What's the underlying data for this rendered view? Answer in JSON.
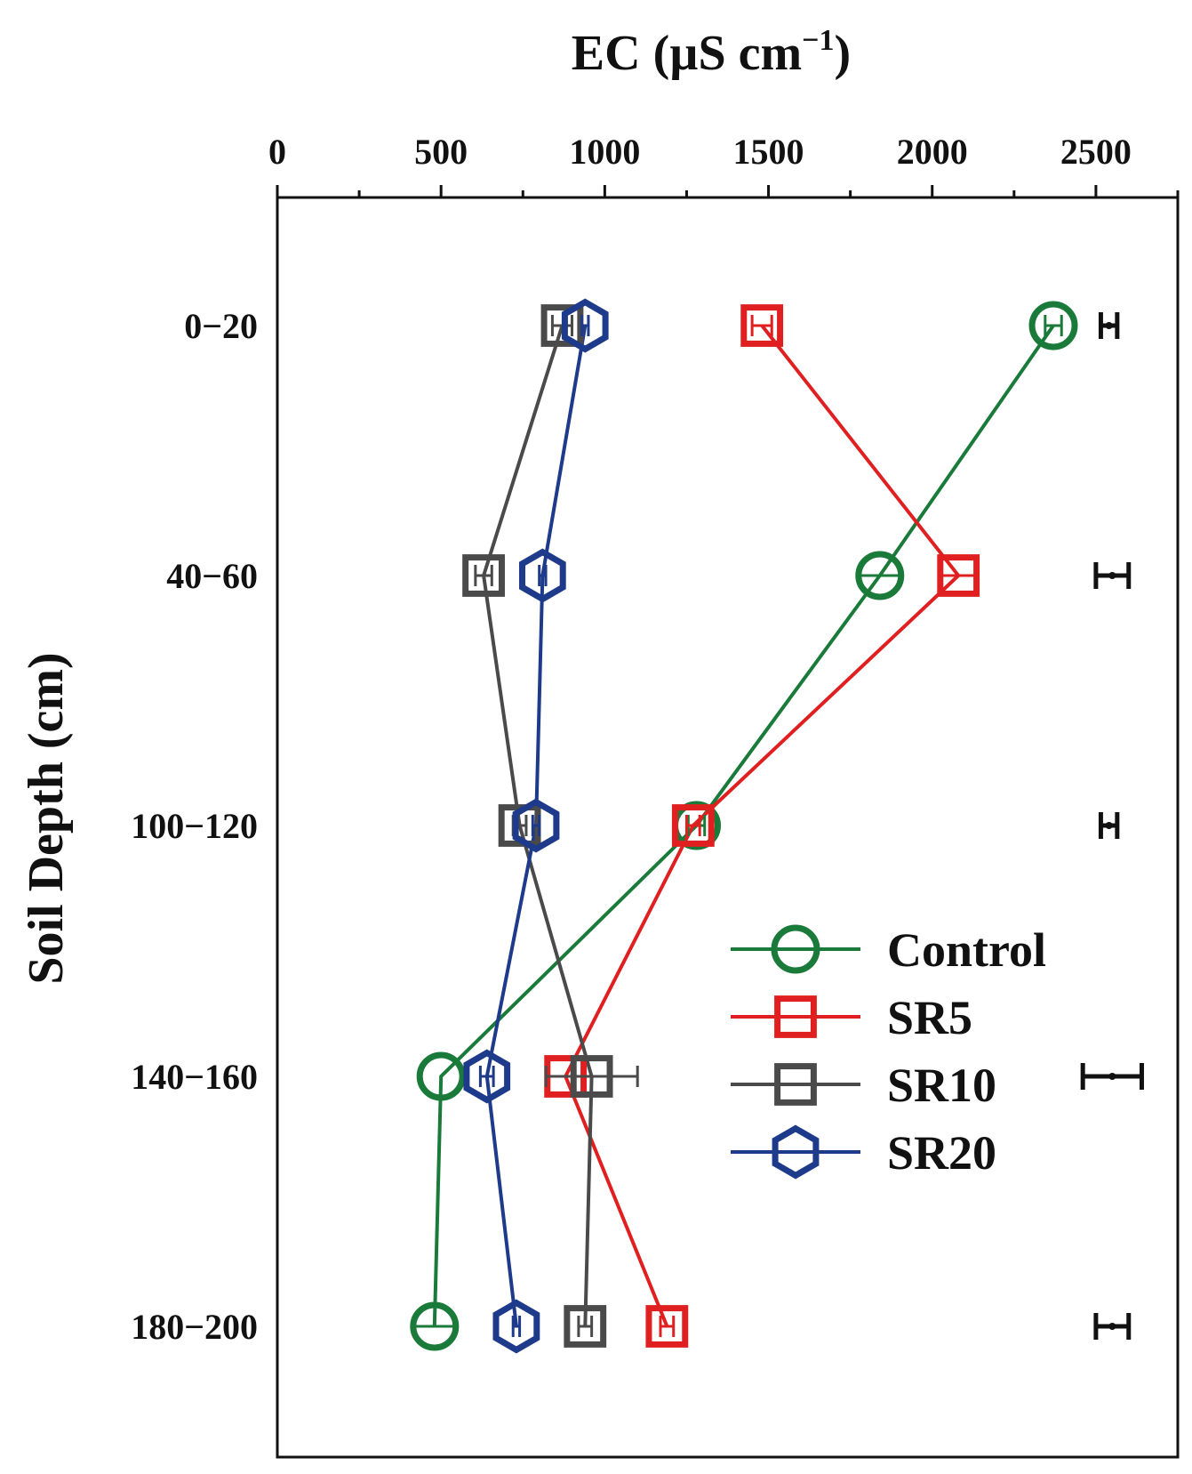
{
  "chart_data": {
    "type": "line",
    "orientation": "depth-profile",
    "title": "",
    "xlabel": "EC (µS cm",
    "xlabel_superscript": "−1",
    "xlabel_close": ")",
    "ylabel": "Soil Depth (cm)",
    "xlim": [
      0,
      2750
    ],
    "x_ticks": [
      0,
      500,
      1000,
      1500,
      2000,
      2500
    ],
    "x_tick_labels": [
      "0",
      "500",
      "1000",
      "1500",
      "2000",
      "2500"
    ],
    "x_minor_ticks": [
      250,
      750,
      1250,
      1750,
      2250,
      2750
    ],
    "categories": [
      "0−20",
      "40−60",
      "100−120",
      "140−160",
      "180−200"
    ],
    "series": [
      {
        "name": "Control",
        "color": "#1a7a3a",
        "marker": "circle",
        "values": [
          2370,
          1840,
          1280,
          500,
          480
        ],
        "errors": [
          25,
          60,
          25,
          0,
          60
        ]
      },
      {
        "name": "SR5",
        "color": "#e02020",
        "marker": "square",
        "values": [
          1480,
          2080,
          1270,
          880,
          1190
        ],
        "errors": [
          30,
          60,
          20,
          60,
          20
        ]
      },
      {
        "name": "SR10",
        "color": "#4a4a4a",
        "marker": "square",
        "values": [
          870,
          630,
          740,
          960,
          940
        ],
        "errors": [
          30,
          25,
          20,
          140,
          20
        ]
      },
      {
        "name": "SR20",
        "color": "#1e3a8a",
        "marker": "hexagon",
        "values": [
          940,
          810,
          790,
          640,
          730
        ],
        "errors": [
          10,
          10,
          10,
          20,
          10
        ]
      }
    ],
    "lsd_bars": [
      {
        "x": 2540,
        "err": 25
      },
      {
        "x": 2550,
        "err": 50
      },
      {
        "x": 2540,
        "err": 25
      },
      {
        "x": 2550,
        "err": 90
      },
      {
        "x": 2550,
        "err": 50
      }
    ],
    "legend_position": "lower-right",
    "grid": false
  }
}
